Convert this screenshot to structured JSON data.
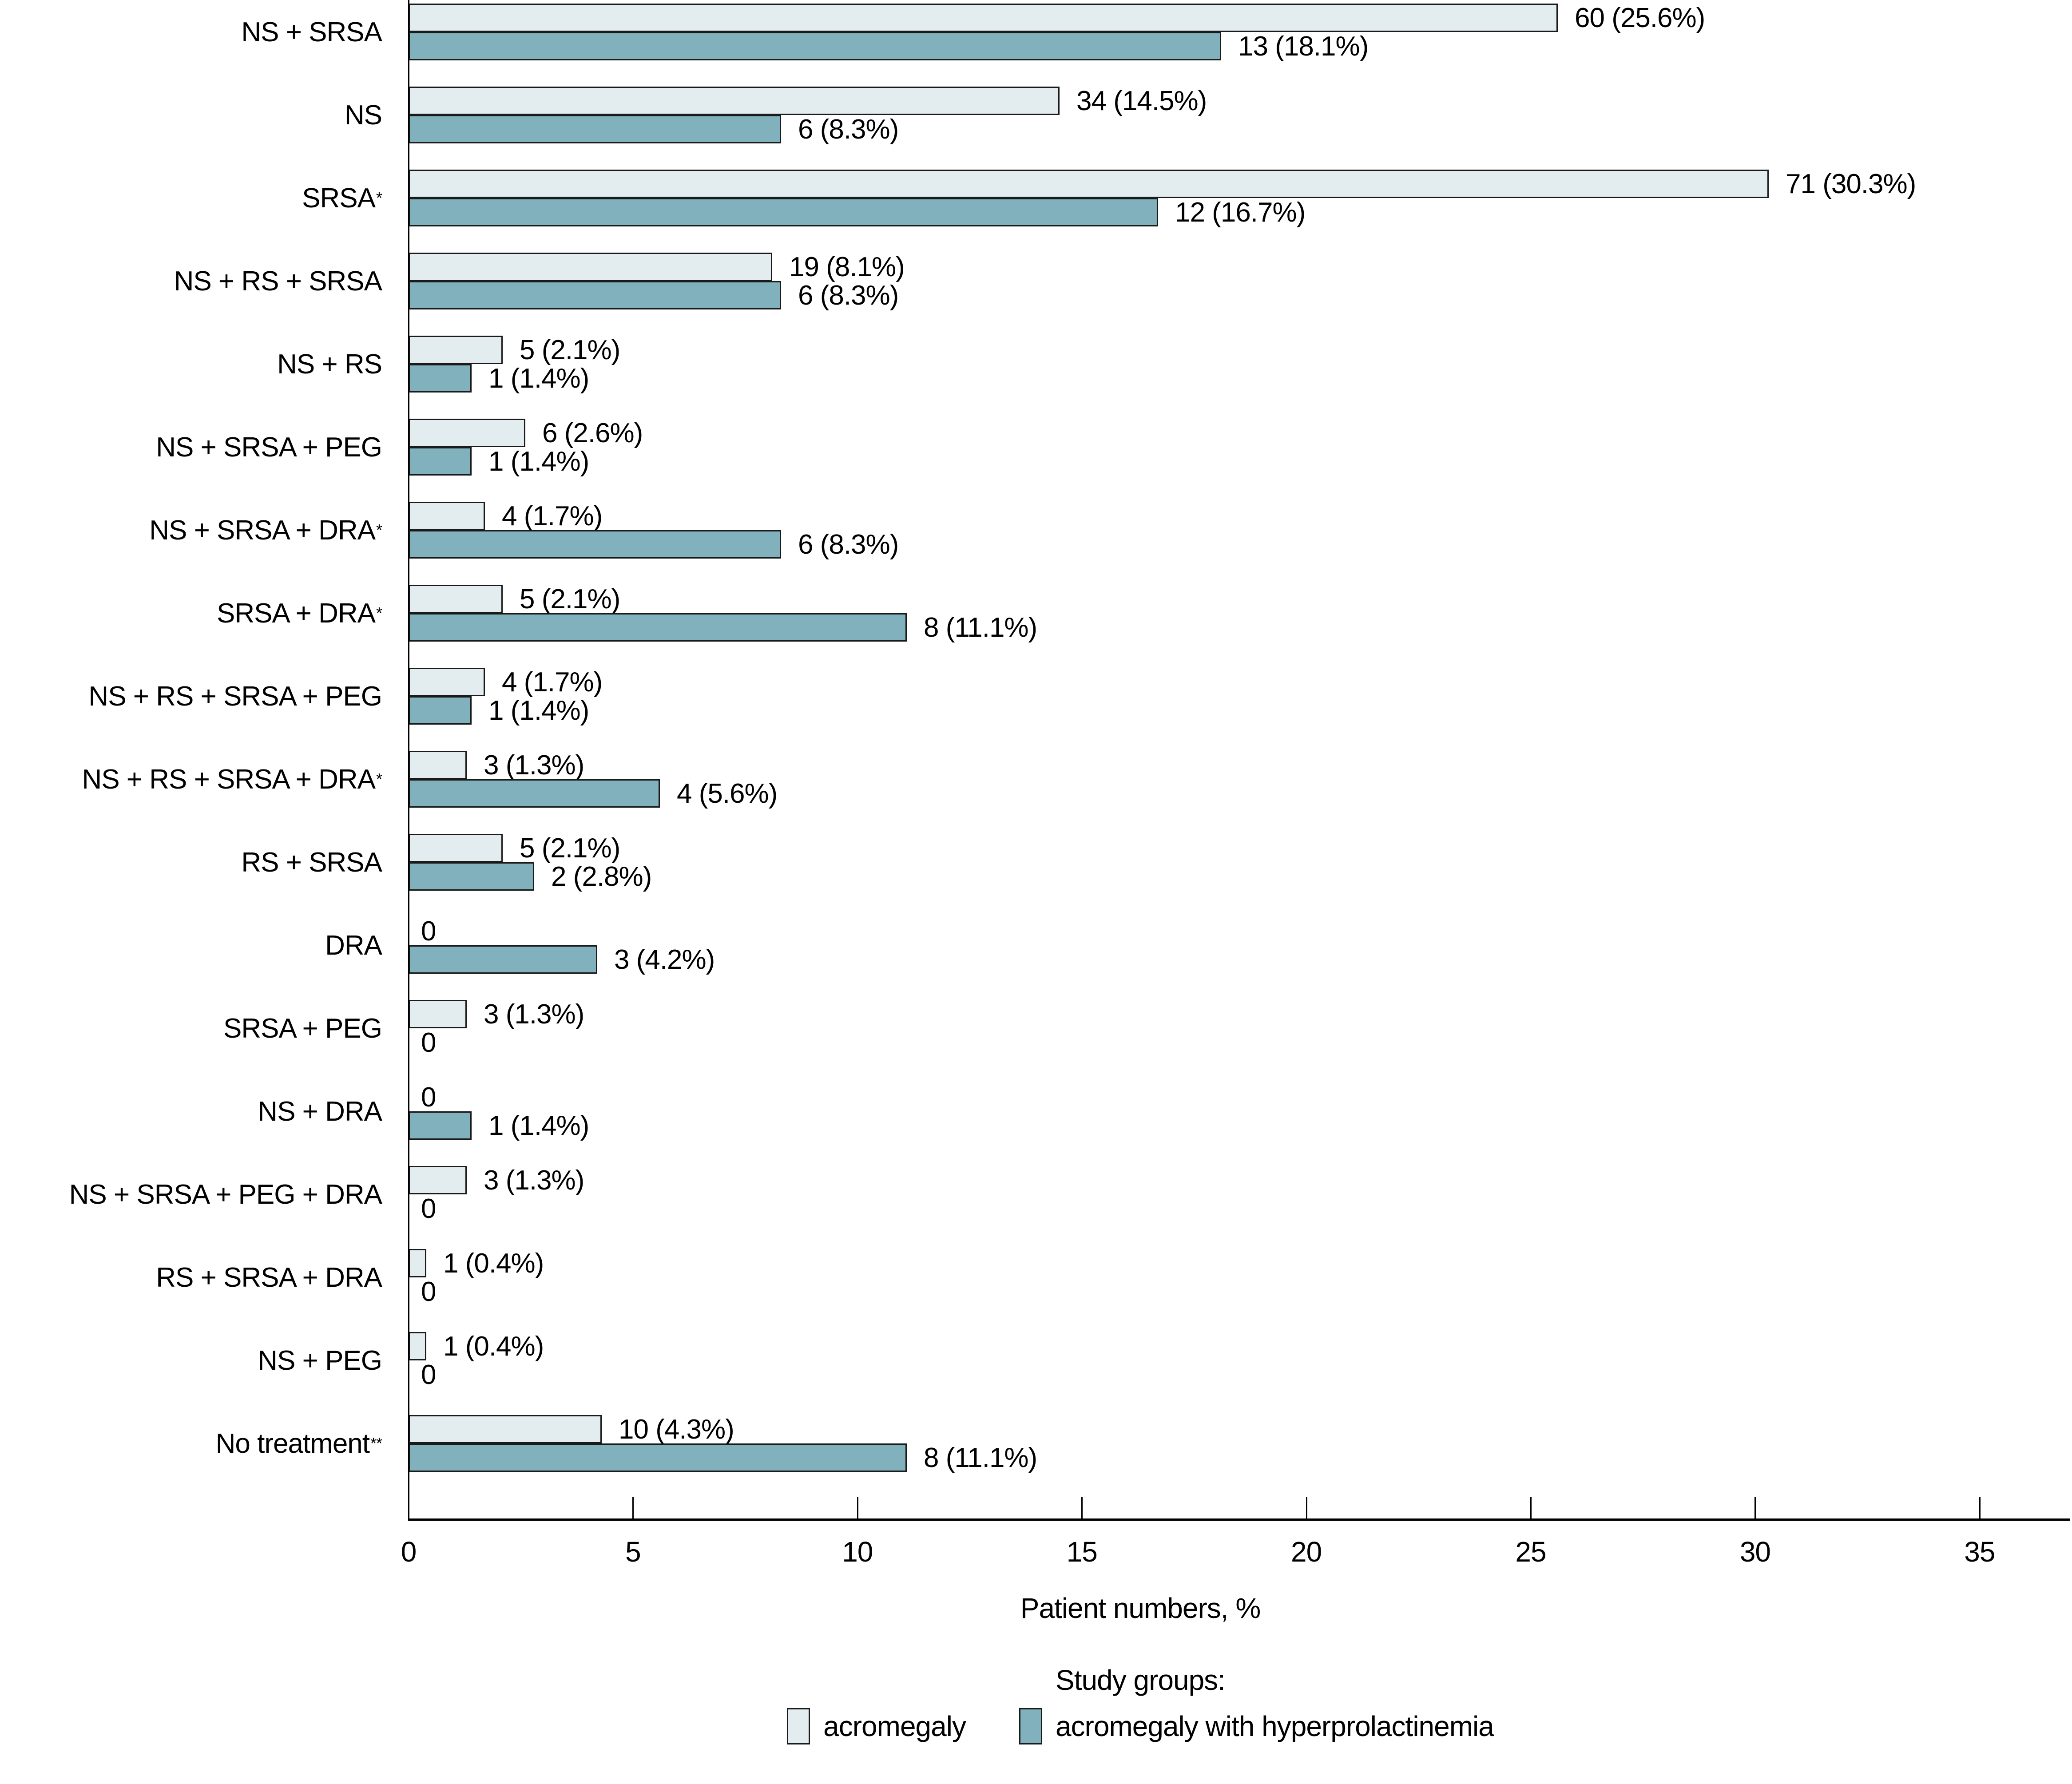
{
  "chart_data": {
    "type": "bar",
    "orientation": "horizontal",
    "title": "",
    "xlabel": "Patient numbers, %",
    "ylabel": "",
    "xlim": [
      0,
      37
    ],
    "x_ticks": [
      "0",
      "5",
      "10",
      "15",
      "20",
      "25",
      "30",
      "35"
    ],
    "grid": false,
    "legend": {
      "title": "Study groups:",
      "position": "bottom",
      "items": [
        {
          "label": "acromegaly",
          "color": "#e3edf0"
        },
        {
          "label": "acromegaly with hyperprolactinemia",
          "color": "#80b1bc"
        }
      ]
    },
    "colors": {
      "bar_light": "#e3edf0",
      "bar_teal": "#80b1bc",
      "bar_border": "#1a1a1a",
      "axis": "#000000",
      "text": "#000000"
    },
    "rows": [
      {
        "category": "NS + SRSA",
        "category_sup": "",
        "acromegaly": {
          "n": 60,
          "pct": 25.6,
          "display": "60 (25.6%)"
        },
        "acromegaly_with_hyperprolactinemia": {
          "n": 13,
          "pct": 18.1,
          "display": "13 (18.1%)"
        }
      },
      {
        "category": "NS",
        "category_sup": "",
        "acromegaly": {
          "n": 34,
          "pct": 14.5,
          "display": "34 (14.5%)"
        },
        "acromegaly_with_hyperprolactinemia": {
          "n": 6,
          "pct": 8.3,
          "display": "6 (8.3%)"
        }
      },
      {
        "category": "SRSA",
        "category_sup": "*",
        "acromegaly": {
          "n": 71,
          "pct": 30.3,
          "display": "71 (30.3%)"
        },
        "acromegaly_with_hyperprolactinemia": {
          "n": 12,
          "pct": 16.7,
          "display": "12 (16.7%)"
        }
      },
      {
        "category": "NS + RS + SRSA",
        "category_sup": "",
        "acromegaly": {
          "n": 19,
          "pct": 8.1,
          "display": "19 (8.1%)"
        },
        "acromegaly_with_hyperprolactinemia": {
          "n": 6,
          "pct": 8.3,
          "display": "6 (8.3%)"
        }
      },
      {
        "category": "NS + RS",
        "category_sup": "",
        "acromegaly": {
          "n": 5,
          "pct": 2.1,
          "display": "5 (2.1%)"
        },
        "acromegaly_with_hyperprolactinemia": {
          "n": 1,
          "pct": 1.4,
          "display": "1 (1.4%)"
        }
      },
      {
        "category": "NS + SRSA + PEG",
        "category_sup": "",
        "acromegaly": {
          "n": 6,
          "pct": 2.6,
          "display": "6 (2.6%)"
        },
        "acromegaly_with_hyperprolactinemia": {
          "n": 1,
          "pct": 1.4,
          "display": "1 (1.4%)"
        }
      },
      {
        "category": "NS + SRSA + DRA",
        "category_sup": "*",
        "acromegaly": {
          "n": 4,
          "pct": 1.7,
          "display": "4 (1.7%)"
        },
        "acromegaly_with_hyperprolactinemia": {
          "n": 6,
          "pct": 8.3,
          "display": "6 (8.3%)"
        }
      },
      {
        "category": "SRSA + DRA",
        "category_sup": "*",
        "acromegaly": {
          "n": 5,
          "pct": 2.1,
          "display": "5 (2.1%)"
        },
        "acromegaly_with_hyperprolactinemia": {
          "n": 8,
          "pct": 11.1,
          "display": "8 (11.1%)"
        }
      },
      {
        "category": "NS + RS + SRSA + PEG",
        "category_sup": "",
        "acromegaly": {
          "n": 4,
          "pct": 1.7,
          "display": "4 (1.7%)"
        },
        "acromegaly_with_hyperprolactinemia": {
          "n": 1,
          "pct": 1.4,
          "display": "1 (1.4%)"
        }
      },
      {
        "category": "NS + RS + SRSA + DRA",
        "category_sup": "*",
        "acromegaly": {
          "n": 3,
          "pct": 1.3,
          "display": "3 (1.3%)"
        },
        "acromegaly_with_hyperprolactinemia": {
          "n": 4,
          "pct": 5.6,
          "display": "4 (5.6%)"
        }
      },
      {
        "category": "RS + SRSA",
        "category_sup": "",
        "acromegaly": {
          "n": 5,
          "pct": 2.1,
          "display": "5 (2.1%)"
        },
        "acromegaly_with_hyperprolactinemia": {
          "n": 2,
          "pct": 2.8,
          "display": "2 (2.8%)"
        }
      },
      {
        "category": "DRA",
        "category_sup": "",
        "acromegaly": {
          "n": 0,
          "pct": 0,
          "display": "0"
        },
        "acromegaly_with_hyperprolactinemia": {
          "n": 3,
          "pct": 4.2,
          "display": "3 (4.2%)"
        }
      },
      {
        "category": "SRSA + PEG",
        "category_sup": "",
        "acromegaly": {
          "n": 3,
          "pct": 1.3,
          "display": "3 (1.3%)"
        },
        "acromegaly_with_hyperprolactinemia": {
          "n": 0,
          "pct": 0,
          "display": "0"
        }
      },
      {
        "category": "NS + DRA",
        "category_sup": "",
        "acromegaly": {
          "n": 0,
          "pct": 0,
          "display": "0"
        },
        "acromegaly_with_hyperprolactinemia": {
          "n": 1,
          "pct": 1.4,
          "display": "1 (1.4%)"
        }
      },
      {
        "category": "NS + SRSA + PEG + DRA",
        "category_sup": "",
        "acromegaly": {
          "n": 3,
          "pct": 1.3,
          "display": "3 (1.3%)"
        },
        "acromegaly_with_hyperprolactinemia": {
          "n": 0,
          "pct": 0,
          "display": "0"
        }
      },
      {
        "category": "RS + SRSA + DRA",
        "category_sup": "",
        "acromegaly": {
          "n": 1,
          "pct": 0.4,
          "display": "1 (0.4%)"
        },
        "acromegaly_with_hyperprolactinemia": {
          "n": 0,
          "pct": 0,
          "display": "0"
        }
      },
      {
        "category": "NS + PEG",
        "category_sup": "",
        "acromegaly": {
          "n": 1,
          "pct": 0.4,
          "display": "1 (0.4%)"
        },
        "acromegaly_with_hyperprolactinemia": {
          "n": 0,
          "pct": 0,
          "display": "0"
        }
      },
      {
        "category": "No treatment",
        "category_sup": "**",
        "acromegaly": {
          "n": 10,
          "pct": 4.3,
          "display": "10 (4.3%)"
        },
        "acromegaly_with_hyperprolactinemia": {
          "n": 8,
          "pct": 11.1,
          "display": "8 (11.1%)"
        }
      }
    ]
  }
}
